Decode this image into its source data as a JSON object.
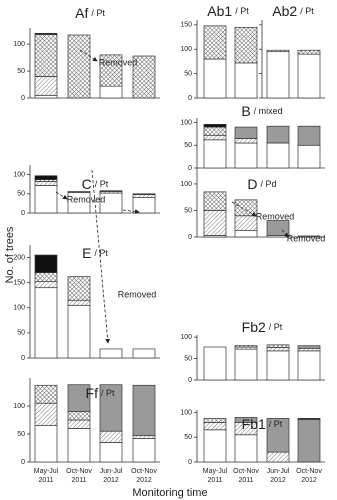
{
  "ylabel": "No. of trees",
  "xlabel": "Monitoring time",
  "categories": [
    [
      "May-Jul",
      "2011"
    ],
    [
      "Oct-Nov",
      "2011"
    ],
    [
      "Jun-Jul",
      "2012"
    ],
    [
      "Oct-Nov",
      "2012"
    ]
  ],
  "fills": [
    "#ffffff",
    "hatch",
    "crosshatch",
    "#9a9a9a",
    "#111111"
  ],
  "chart_data": [
    {
      "type": "bar",
      "title": "Af",
      "subtitle": "/ Pt",
      "ylim": [
        0,
        130
      ],
      "yticks": [
        0,
        50,
        100
      ],
      "annotations": [
        "Removed"
      ],
      "series": [
        {
          "values": [
            5,
            0,
            22,
            0
          ]
        },
        {
          "values": [
            35,
            0,
            0,
            0
          ]
        },
        {
          "values": [
            78,
            117,
            58,
            78
          ]
        },
        {
          "values": [
            0,
            0,
            0,
            0
          ]
        },
        {
          "values": [
            2,
            0,
            0,
            0
          ]
        }
      ]
    },
    {
      "type": "bar",
      "title": "Ab1",
      "subtitle": "/ Pt",
      "ylim": [
        0,
        160
      ],
      "yticks": [
        0,
        50,
        100,
        150
      ],
      "series": [
        {
          "values": [
            80,
            72,
            null,
            null
          ]
        },
        {
          "values": [
            0,
            0,
            null,
            null
          ]
        },
        {
          "values": [
            68,
            73,
            null,
            null
          ]
        },
        {
          "values": [
            0,
            0,
            null,
            null
          ]
        },
        {
          "values": [
            0,
            0,
            null,
            null
          ]
        }
      ]
    },
    {
      "type": "bar",
      "title": "Ab2",
      "subtitle": "/ Pt",
      "ylim": [
        0,
        160
      ],
      "yticks": [
        0,
        50,
        100,
        150
      ],
      "tick_labels": false,
      "series": [
        {
          "values": [
            null,
            null,
            95,
            90
          ]
        },
        {
          "values": [
            null,
            null,
            3,
            0
          ]
        },
        {
          "values": [
            null,
            null,
            0,
            8
          ]
        },
        {
          "values": [
            null,
            null,
            0,
            0
          ]
        },
        {
          "values": [
            null,
            null,
            0,
            0
          ]
        }
      ]
    },
    {
      "type": "bar",
      "title": "B",
      "subtitle": "/ mixed",
      "ylim": [
        0,
        110
      ],
      "yticks": [
        0,
        50,
        100
      ],
      "series": [
        {
          "values": [
            62,
            55,
            55,
            50
          ]
        },
        {
          "values": [
            10,
            10,
            0,
            0
          ]
        },
        {
          "values": [
            18,
            0,
            0,
            0
          ]
        },
        {
          "values": [
            0,
            25,
            37,
            42
          ]
        },
        {
          "values": [
            6,
            0,
            0,
            0
          ]
        }
      ]
    },
    {
      "type": "bar",
      "title": "C",
      "subtitle": "/ Pt",
      "ylim": [
        0,
        125
      ],
      "yticks": [
        0,
        50,
        100
      ],
      "annotations": [
        "Removed"
      ],
      "series": [
        {
          "values": [
            72,
            53,
            52,
            40
          ]
        },
        {
          "values": [
            10,
            0,
            4,
            8
          ]
        },
        {
          "values": [
            5,
            0,
            0,
            0
          ]
        },
        {
          "values": [
            0,
            3,
            2,
            2
          ]
        },
        {
          "values": [
            10,
            0,
            0,
            0
          ]
        }
      ]
    },
    {
      "type": "bar",
      "title": "D",
      "subtitle": "/ Pd",
      "ylim": [
        0,
        130
      ],
      "yticks": [
        0,
        50,
        100
      ],
      "annotations": [
        "Removed",
        "Removed"
      ],
      "series": [
        {
          "values": [
            3,
            12,
            3,
            0
          ]
        },
        {
          "values": [
            47,
            28,
            0,
            0
          ]
        },
        {
          "values": [
            35,
            30,
            0,
            0
          ]
        },
        {
          "values": [
            0,
            0,
            28,
            2
          ]
        },
        {
          "values": [
            0,
            0,
            0,
            0
          ]
        }
      ]
    },
    {
      "type": "bar",
      "title": "E",
      "subtitle": "/ Pt",
      "ylim": [
        0,
        225
      ],
      "yticks": [
        0,
        50,
        100,
        150,
        200
      ],
      "annotations": [
        "Removed"
      ],
      "series": [
        {
          "values": [
            140,
            105,
            18,
            18
          ]
        },
        {
          "values": [
            12,
            10,
            0,
            0
          ]
        },
        {
          "values": [
            18,
            47,
            0,
            0
          ]
        },
        {
          "values": [
            0,
            0,
            0,
            0
          ]
        },
        {
          "values": [
            35,
            0,
            0,
            0
          ]
        }
      ]
    },
    {
      "type": "bar",
      "title": "Fb2",
      "subtitle": "/ Pt",
      "ylim": [
        0,
        105
      ],
      "yticks": [
        0,
        50,
        100
      ],
      "series": [
        {
          "values": [
            77,
            72,
            68,
            68
          ]
        },
        {
          "values": [
            0,
            5,
            8,
            6
          ]
        },
        {
          "values": [
            0,
            3,
            6,
            0
          ]
        },
        {
          "values": [
            0,
            0,
            0,
            6
          ]
        },
        {
          "values": [
            0,
            0,
            0,
            0
          ]
        }
      ]
    },
    {
      "type": "bar",
      "title": "Ff",
      "subtitle": "/ Pt",
      "ylim": [
        0,
        150
      ],
      "yticks": [
        0,
        50,
        100
      ],
      "series": [
        {
          "values": [
            65,
            60,
            35,
            42
          ]
        },
        {
          "values": [
            40,
            15,
            20,
            5
          ]
        },
        {
          "values": [
            32,
            15,
            0,
            0
          ]
        },
        {
          "values": [
            0,
            48,
            83,
            90
          ]
        },
        {
          "values": [
            0,
            0,
            0,
            0
          ]
        }
      ]
    },
    {
      "type": "bar",
      "title": "Fb1",
      "subtitle": "/ Pt",
      "ylim": [
        0,
        105
      ],
      "yticks": [
        0,
        50,
        100
      ],
      "series": [
        {
          "values": [
            65,
            55,
            0,
            0
          ]
        },
        {
          "values": [
            15,
            25,
            20,
            0
          ]
        },
        {
          "values": [
            8,
            0,
            0,
            0
          ]
        },
        {
          "values": [
            0,
            10,
            68,
            86
          ]
        },
        {
          "values": [
            0,
            0,
            0,
            2
          ]
        }
      ]
    }
  ]
}
